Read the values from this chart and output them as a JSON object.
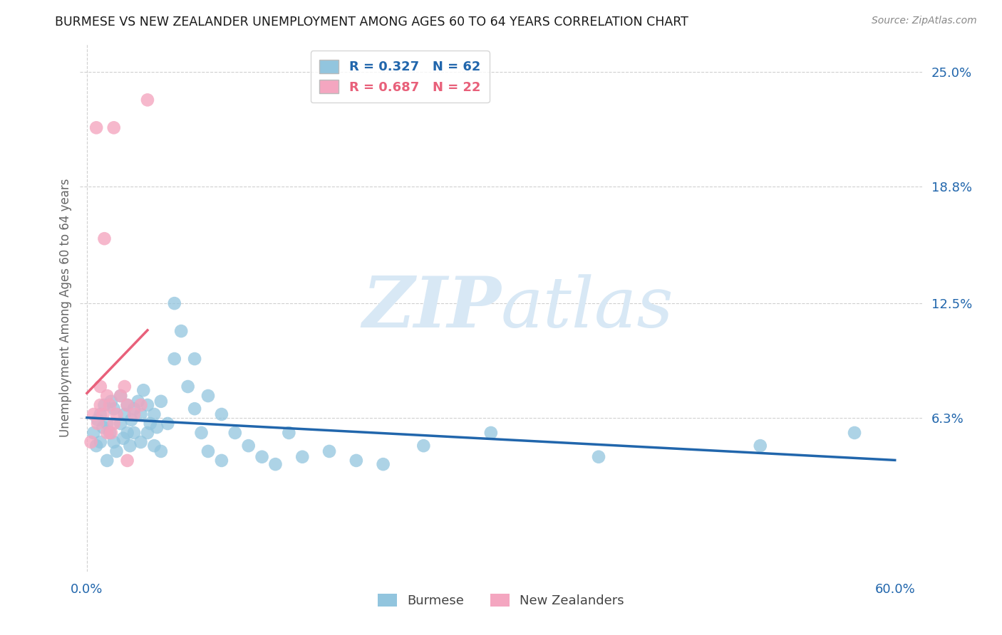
{
  "title": "BURMESE VS NEW ZEALANDER UNEMPLOYMENT AMONG AGES 60 TO 64 YEARS CORRELATION CHART",
  "source": "Source: ZipAtlas.com",
  "ylabel": "Unemployment Among Ages 60 to 64 years",
  "xlim": [
    -0.005,
    0.62
  ],
  "ylim": [
    -0.02,
    0.265
  ],
  "burmese_color": "#92c5de",
  "nz_color": "#f4a6c0",
  "burmese_line_color": "#2166ac",
  "nz_line_color": "#e8607a",
  "burmese_R": 0.327,
  "burmese_N": 62,
  "nz_R": 0.687,
  "nz_N": 22,
  "ytick_vals": [
    0.063,
    0.125,
    0.188,
    0.25
  ],
  "ytick_labels": [
    "6.3%",
    "12.5%",
    "18.8%",
    "25.0%"
  ],
  "xtick_vals": [
    0.0,
    0.6
  ],
  "xtick_labels": [
    "0.0%",
    "60.0%"
  ],
  "burmese_x": [
    0.005,
    0.007,
    0.008,
    0.01,
    0.01,
    0.012,
    0.013,
    0.015,
    0.015,
    0.017,
    0.018,
    0.02,
    0.02,
    0.022,
    0.025,
    0.025,
    0.027,
    0.028,
    0.03,
    0.03,
    0.032,
    0.033,
    0.035,
    0.035,
    0.038,
    0.04,
    0.04,
    0.042,
    0.045,
    0.045,
    0.047,
    0.05,
    0.05,
    0.052,
    0.055,
    0.055,
    0.06,
    0.065,
    0.065,
    0.07,
    0.075,
    0.08,
    0.08,
    0.085,
    0.09,
    0.09,
    0.1,
    0.1,
    0.11,
    0.12,
    0.13,
    0.14,
    0.15,
    0.16,
    0.18,
    0.2,
    0.22,
    0.25,
    0.3,
    0.38,
    0.5,
    0.57
  ],
  "burmese_y": [
    0.055,
    0.048,
    0.062,
    0.05,
    0.065,
    0.058,
    0.07,
    0.06,
    0.04,
    0.055,
    0.072,
    0.05,
    0.068,
    0.045,
    0.06,
    0.075,
    0.052,
    0.065,
    0.055,
    0.07,
    0.048,
    0.062,
    0.055,
    0.068,
    0.072,
    0.05,
    0.065,
    0.078,
    0.055,
    0.07,
    0.06,
    0.048,
    0.065,
    0.058,
    0.072,
    0.045,
    0.06,
    0.125,
    0.095,
    0.11,
    0.08,
    0.095,
    0.068,
    0.055,
    0.075,
    0.045,
    0.065,
    0.04,
    0.055,
    0.048,
    0.042,
    0.038,
    0.055,
    0.042,
    0.045,
    0.04,
    0.038,
    0.048,
    0.055,
    0.042,
    0.048,
    0.055
  ],
  "nz_x": [
    0.003,
    0.005,
    0.007,
    0.008,
    0.01,
    0.01,
    0.012,
    0.013,
    0.015,
    0.015,
    0.017,
    0.018,
    0.02,
    0.02,
    0.022,
    0.025,
    0.028,
    0.03,
    0.03,
    0.035,
    0.04,
    0.045
  ],
  "nz_y": [
    0.05,
    0.065,
    0.22,
    0.06,
    0.07,
    0.08,
    0.065,
    0.16,
    0.055,
    0.075,
    0.07,
    0.055,
    0.06,
    0.22,
    0.065,
    0.075,
    0.08,
    0.07,
    0.04,
    0.065,
    0.07,
    0.235
  ]
}
